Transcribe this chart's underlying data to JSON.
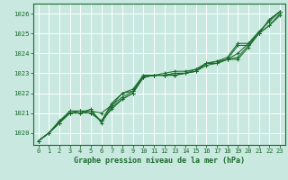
{
  "bg_color": "#c8e8e0",
  "plot_bg_color": "#c8e8e0",
  "grid_color": "#ffffff",
  "line_color": "#1a6b2a",
  "title": "Graphe pression niveau de la mer (hPa)",
  "xlim": [
    -0.5,
    23.5
  ],
  "ylim": [
    1019.4,
    1026.5
  ],
  "yticks": [
    1020,
    1021,
    1022,
    1023,
    1024,
    1025,
    1026
  ],
  "xticks": [
    0,
    1,
    2,
    3,
    4,
    5,
    6,
    7,
    8,
    9,
    10,
    11,
    12,
    13,
    14,
    15,
    16,
    17,
    18,
    19,
    20,
    21,
    22,
    23
  ],
  "series": [
    [
      1019.6,
      1020.0,
      1020.5,
      1021.0,
      1021.0,
      1021.0,
      1020.6,
      1021.4,
      1021.8,
      1022.1,
      1022.8,
      1022.9,
      1022.9,
      1022.9,
      1023.0,
      1023.1,
      1023.5,
      1023.5,
      1023.7,
      1023.7,
      1024.3,
      1025.0,
      1025.7,
      1026.1
    ],
    [
      1019.6,
      1020.0,
      1020.5,
      1021.1,
      1021.1,
      1021.1,
      1021.0,
      1021.4,
      1022.0,
      1022.1,
      1022.9,
      1022.9,
      1022.9,
      1023.0,
      1023.0,
      1023.1,
      1023.5,
      1023.5,
      1023.7,
      1023.8,
      1024.4,
      1025.0,
      1025.7,
      1026.1
    ],
    [
      1019.6,
      1020.0,
      1020.6,
      1021.0,
      1021.0,
      1021.2,
      1020.5,
      1021.3,
      1021.7,
      1022.0,
      1022.8,
      1022.9,
      1022.9,
      1023.0,
      1023.0,
      1023.2,
      1023.5,
      1023.6,
      1023.7,
      1024.0,
      1024.5,
      1025.0,
      1025.4,
      1026.0
    ],
    [
      1019.6,
      1020.0,
      1020.5,
      1021.0,
      1021.1,
      1021.0,
      1020.6,
      1021.2,
      1021.7,
      1022.0,
      1022.8,
      1022.9,
      1022.9,
      1022.9,
      1023.0,
      1023.1,
      1023.4,
      1023.5,
      1023.7,
      1024.4,
      1024.4,
      1025.0,
      1025.4,
      1025.9
    ],
    [
      1019.6,
      1020.0,
      1020.6,
      1021.1,
      1021.1,
      1021.1,
      1020.6,
      1021.5,
      1022.0,
      1022.2,
      1022.9,
      1022.9,
      1023.0,
      1023.1,
      1023.1,
      1023.2,
      1023.5,
      1023.6,
      1023.8,
      1024.5,
      1024.5,
      1025.1,
      1025.6,
      1026.1
    ]
  ]
}
